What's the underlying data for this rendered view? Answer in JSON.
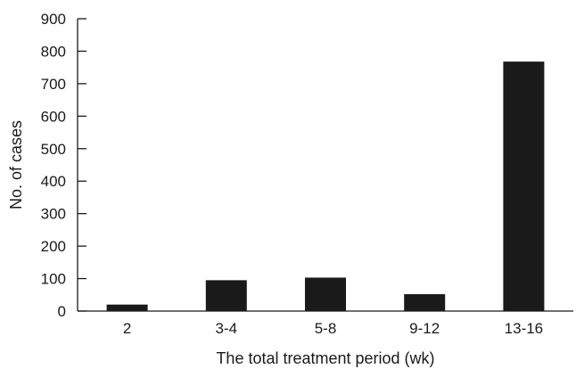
{
  "chart_data": {
    "type": "bar",
    "categories": [
      "2",
      "3-4",
      "5-8",
      "9-12",
      "13-16"
    ],
    "values": [
      20,
      95,
      103,
      52,
      768
    ],
    "xlabel": "The total treatment period (wk)",
    "ylabel": "No. of cases",
    "ylim": [
      0,
      900
    ],
    "yticks": [
      0,
      100,
      200,
      300,
      400,
      500,
      600,
      700,
      800,
      900
    ],
    "grid": false,
    "bar_color": "#1a1a1a"
  }
}
